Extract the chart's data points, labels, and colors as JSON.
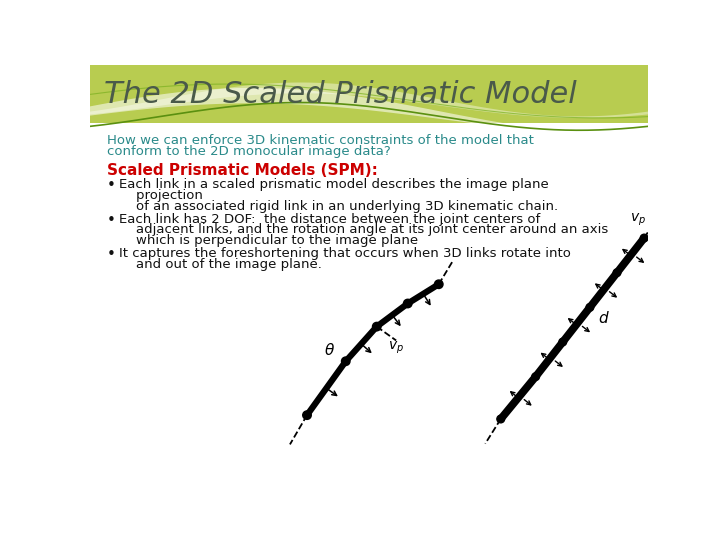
{
  "title": "The 2D Scaled Prismatic Model",
  "title_color": "#4a5a4a",
  "title_fontsize": 22,
  "subtitle_line1": "How we can enforce 3D kinematic constraints of the model that",
  "subtitle_line2": "conform to the 2D monocular image data?",
  "subtitle_color": "#2a8a8a",
  "subtitle_fontsize": 9.5,
  "heading": "Scaled Prismatic Models (SPM):",
  "heading_color": "#cc0000",
  "heading_fontsize": 11,
  "bullet1_line1": "Each link in a scaled prismatic model describes the image plane",
  "bullet1_line2": "    projection",
  "bullet1_line3": "    of an associated rigid link in an underlying 3D kinematic chain.",
  "bullet2_line1": "Each link has 2 DOF:  the distance between the joint centers of",
  "bullet2_line2": "    adjacent links, and the rotation angle at its joint center around an axis",
  "bullet2_line3": "    which is perpendicular to the image plane",
  "bullet3_line1": "It captures the foreshortening that occurs when 3D links rotate into",
  "bullet3_line2": "    and out of the image plane.",
  "bullet_fontsize": 9.5,
  "bullet_color": "#111111",
  "bg_color": "#ffffff"
}
